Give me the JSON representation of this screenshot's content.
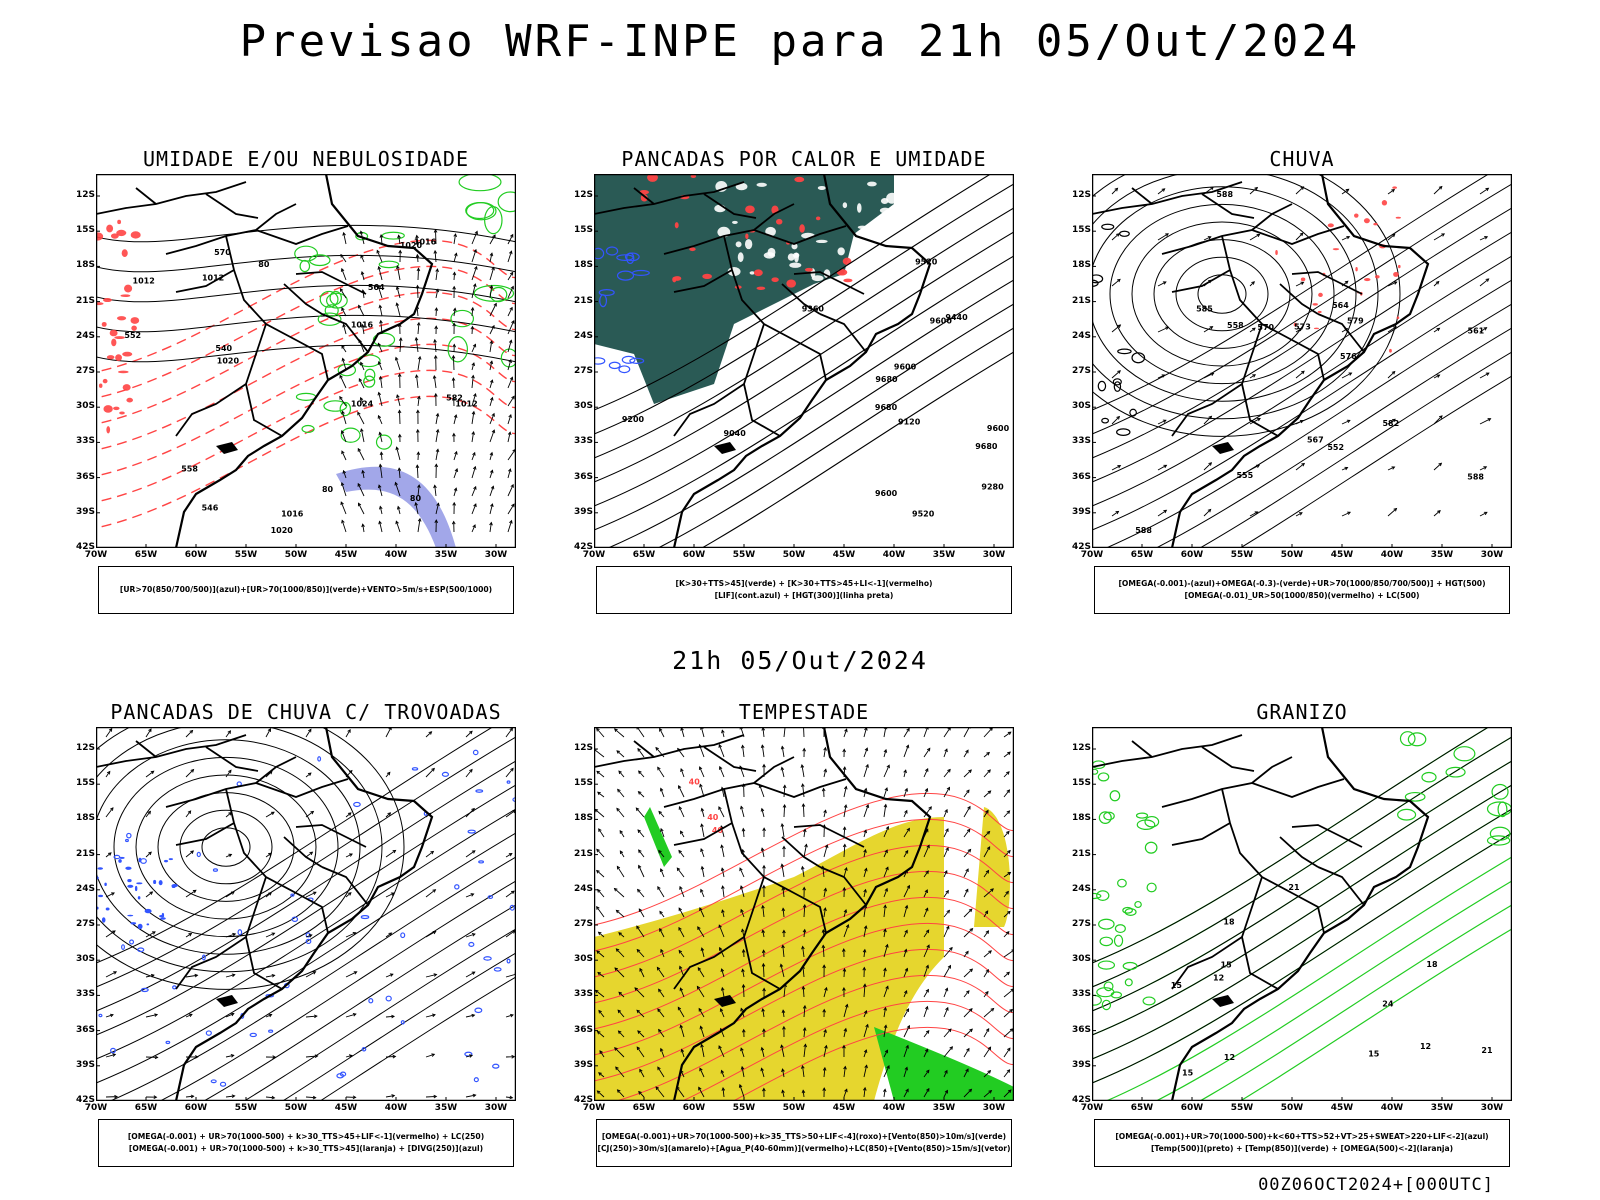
{
  "main_title": "Previsao WRF-INPE  para 21h 05/Out/2024",
  "mid_title": "21h 05/Out/2024",
  "footer": "00Z06OCT2024+[000UTC]",
  "lat_labels": [
    "12S",
    "15S",
    "18S",
    "21S",
    "24S",
    "27S",
    "30S",
    "33S",
    "36S",
    "39S",
    "42S"
  ],
  "lon_labels": [
    "70W",
    "65W",
    "60W",
    "55W",
    "50W",
    "45W",
    "40W",
    "35W",
    "30W"
  ],
  "colors": {
    "umidade_verde": "#22cc22",
    "vermelho": "#ff4444",
    "azul": "#3355ff",
    "teal_lif": "#2a5a55",
    "amarelo": "#e6d62e",
    "contorno_preto": "#000000"
  },
  "panels": [
    {
      "id": "umidade",
      "title": "UMIDADE E/OU NEBULOSIDADE",
      "legend": [
        "[UR>70(850/700/500)](azul)+[UR>70(1000/850)](verde)+VENTO>5m/s+ESP(500/1000)"
      ],
      "contour_labels": [
        "1012",
        "1012",
        "1016",
        "1016",
        "1020",
        "1020",
        "1024",
        "1020",
        "1016",
        "1012",
        "582",
        "570",
        "564",
        "558",
        "552",
        "546",
        "540",
        "80",
        "80",
        "80"
      ]
    },
    {
      "id": "pancadas_calor",
      "title": "PANCADAS POR CALOR E UMIDADE",
      "legend": [
        "[K>30+TTS>45](verde) + [K>30+TTS>45+LI<-1](vermelho)",
        "[LIF](cont.azul) + [HGT(300)](linha preta)"
      ],
      "contour_labels": [
        "9680",
        "9600",
        "9600",
        "9680",
        "9600",
        "9520",
        "9440",
        "9360",
        "9280",
        "9520",
        "9600",
        "9680",
        "9200",
        "9120",
        "9040"
      ]
    },
    {
      "id": "chuva",
      "title": "CHUVA",
      "legend": [
        "[OMEGA(-0.001)-(azul)+OMEGA(-0.3)-(verde)+UR>70(1000/850/700/500)] + HGT(500)",
        "[OMEGA(-0.01)_UR>50(1000/850)(vermelho) + LC(500)"
      ],
      "contour_labels": [
        "588",
        "588",
        "588",
        "585",
        "582",
        "579",
        "576",
        "573",
        "570",
        "567",
        "564",
        "561",
        "558",
        "555",
        "552"
      ]
    },
    {
      "id": "trovoadas",
      "title": "PANCADAS DE CHUVA C/ TROVOADAS",
      "legend": [
        "[OMEGA(-0.001) + UR>70(1000-500) + k>30_TTS>45+LIF<-1](vermelho) + LC(250)",
        "[OMEGA(-0.001) + UR>70(1000-500) + k>30_TTS>45](laranja) + [DIVG(250)](azul)"
      ],
      "contour_labels": []
    },
    {
      "id": "tempestade",
      "title": "TEMPESTADE",
      "legend": [
        "[OMEGA(-0.001)+UR>70(1000-500)+k>35_TTS>50+LIF<-4](roxo)+[Vento(850)>10m/s](verde)",
        "[CJ(250)>30m/s](amarelo)+[Agua_P(40-60mm)](vermelho)+LC(850)+[Vento(850)>15m/s](vetor)"
      ],
      "contour_labels": [
        "40",
        "40",
        "40"
      ]
    },
    {
      "id": "granizo",
      "title": "GRANIZO",
      "legend": [
        "[OMEGA(-0.001)+UR>70(1000-500)+k<60+TTS>52+VT>25+SWEAT>220+LIF<-2](azul)",
        "[Temp(500)](preto) + [Temp(850)](verde) + [OMEGA(500)<-2](laranja)"
      ],
      "contour_labels": [
        "15",
        "12",
        "12",
        "15",
        "18",
        "21",
        "24",
        "15",
        "18",
        "21",
        "12",
        "15"
      ]
    }
  ]
}
